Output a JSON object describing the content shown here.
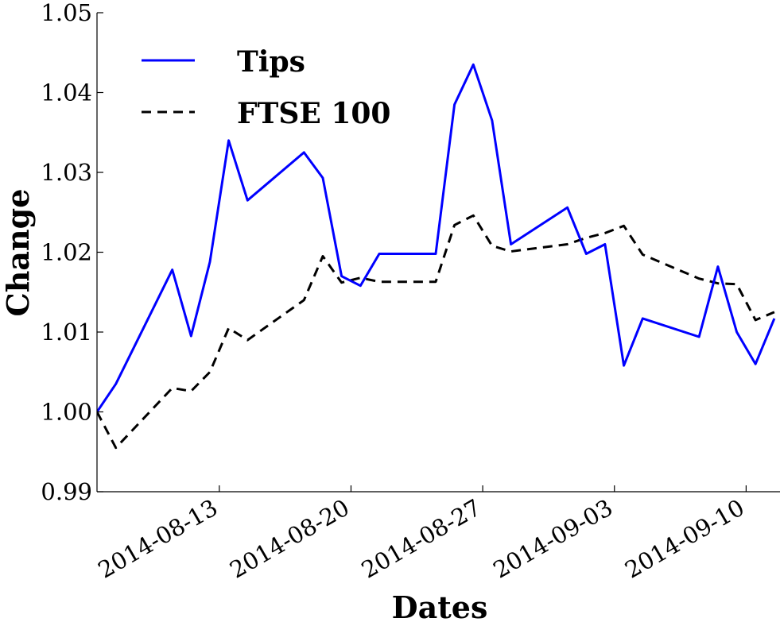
{
  "chart_data": {
    "type": "line",
    "title": "",
    "xlabel": "Dates",
    "ylabel": "Change",
    "ylim": [
      0.99,
      1.05
    ],
    "yticks": [
      "0.99",
      "1.00",
      "1.01",
      "1.02",
      "1.03",
      "1.04",
      "1.05"
    ],
    "xlim_days": [
      0,
      36.3
    ],
    "xtick_labels": [
      {
        "label": "2014-08-13",
        "day": 8.5
      },
      {
        "label": "2014-08-20",
        "day": 15.5
      },
      {
        "label": "2014-08-27",
        "day": 22.5
      },
      {
        "label": "2014-09-03",
        "day": 29.5
      },
      {
        "label": "2014-09-10",
        "day": 36.5
      }
    ],
    "legend_position": "top-left",
    "series": [
      {
        "name": "Tips",
        "color": "#0000ff",
        "style": "solid",
        "points": [
          [
            2.0,
            1.0
          ],
          [
            3.0,
            1.0035
          ],
          [
            6.0,
            1.0178
          ],
          [
            7.0,
            1.0095
          ],
          [
            8.0,
            1.0188
          ],
          [
            9.0,
            1.034
          ],
          [
            10.0,
            1.0265
          ],
          [
            13.0,
            1.0325
          ],
          [
            14.0,
            1.0293
          ],
          [
            15.0,
            1.017
          ],
          [
            16.0,
            1.0158
          ],
          [
            17.0,
            1.0198
          ],
          [
            20.0,
            1.0198
          ],
          [
            21.0,
            1.0385
          ],
          [
            22.0,
            1.0435
          ],
          [
            23.0,
            1.0365
          ],
          [
            24.0,
            1.021
          ],
          [
            27.0,
            1.0256
          ],
          [
            28.0,
            1.0198
          ],
          [
            29.0,
            1.021
          ],
          [
            30.0,
            1.0058
          ],
          [
            31.0,
            1.0117
          ],
          [
            34.0,
            1.0094
          ],
          [
            35.0,
            1.0182
          ],
          [
            36.0,
            1.01
          ],
          [
            37.0,
            1.006
          ],
          [
            38.0,
            1.0117
          ]
        ]
      },
      {
        "name": "FTSE 100",
        "color": "#000000",
        "style": "dashed",
        "points": [
          [
            2.0,
            1.0
          ],
          [
            3.0,
            0.9955
          ],
          [
            6.0,
            1.003
          ],
          [
            7.0,
            1.0026
          ],
          [
            8.0,
            1.005
          ],
          [
            9.0,
            1.0105
          ],
          [
            10.0,
            1.009
          ],
          [
            13.0,
            1.014
          ],
          [
            14.0,
            1.0195
          ],
          [
            15.0,
            1.0162
          ],
          [
            16.0,
            1.0168
          ],
          [
            17.0,
            1.0163
          ],
          [
            20.0,
            1.0163
          ],
          [
            21.0,
            1.0234
          ],
          [
            22.0,
            1.0246
          ],
          [
            23.0,
            1.0208
          ],
          [
            24.0,
            1.0201
          ],
          [
            27.0,
            1.021
          ],
          [
            28.0,
            1.0218
          ],
          [
            29.0,
            1.0224
          ],
          [
            30.0,
            1.0233
          ],
          [
            31.0,
            1.0197
          ],
          [
            34.0,
            1.0167
          ],
          [
            35.0,
            1.0161
          ],
          [
            36.0,
            1.016
          ],
          [
            37.0,
            1.0115
          ],
          [
            38.0,
            1.0125
          ]
        ]
      }
    ]
  }
}
